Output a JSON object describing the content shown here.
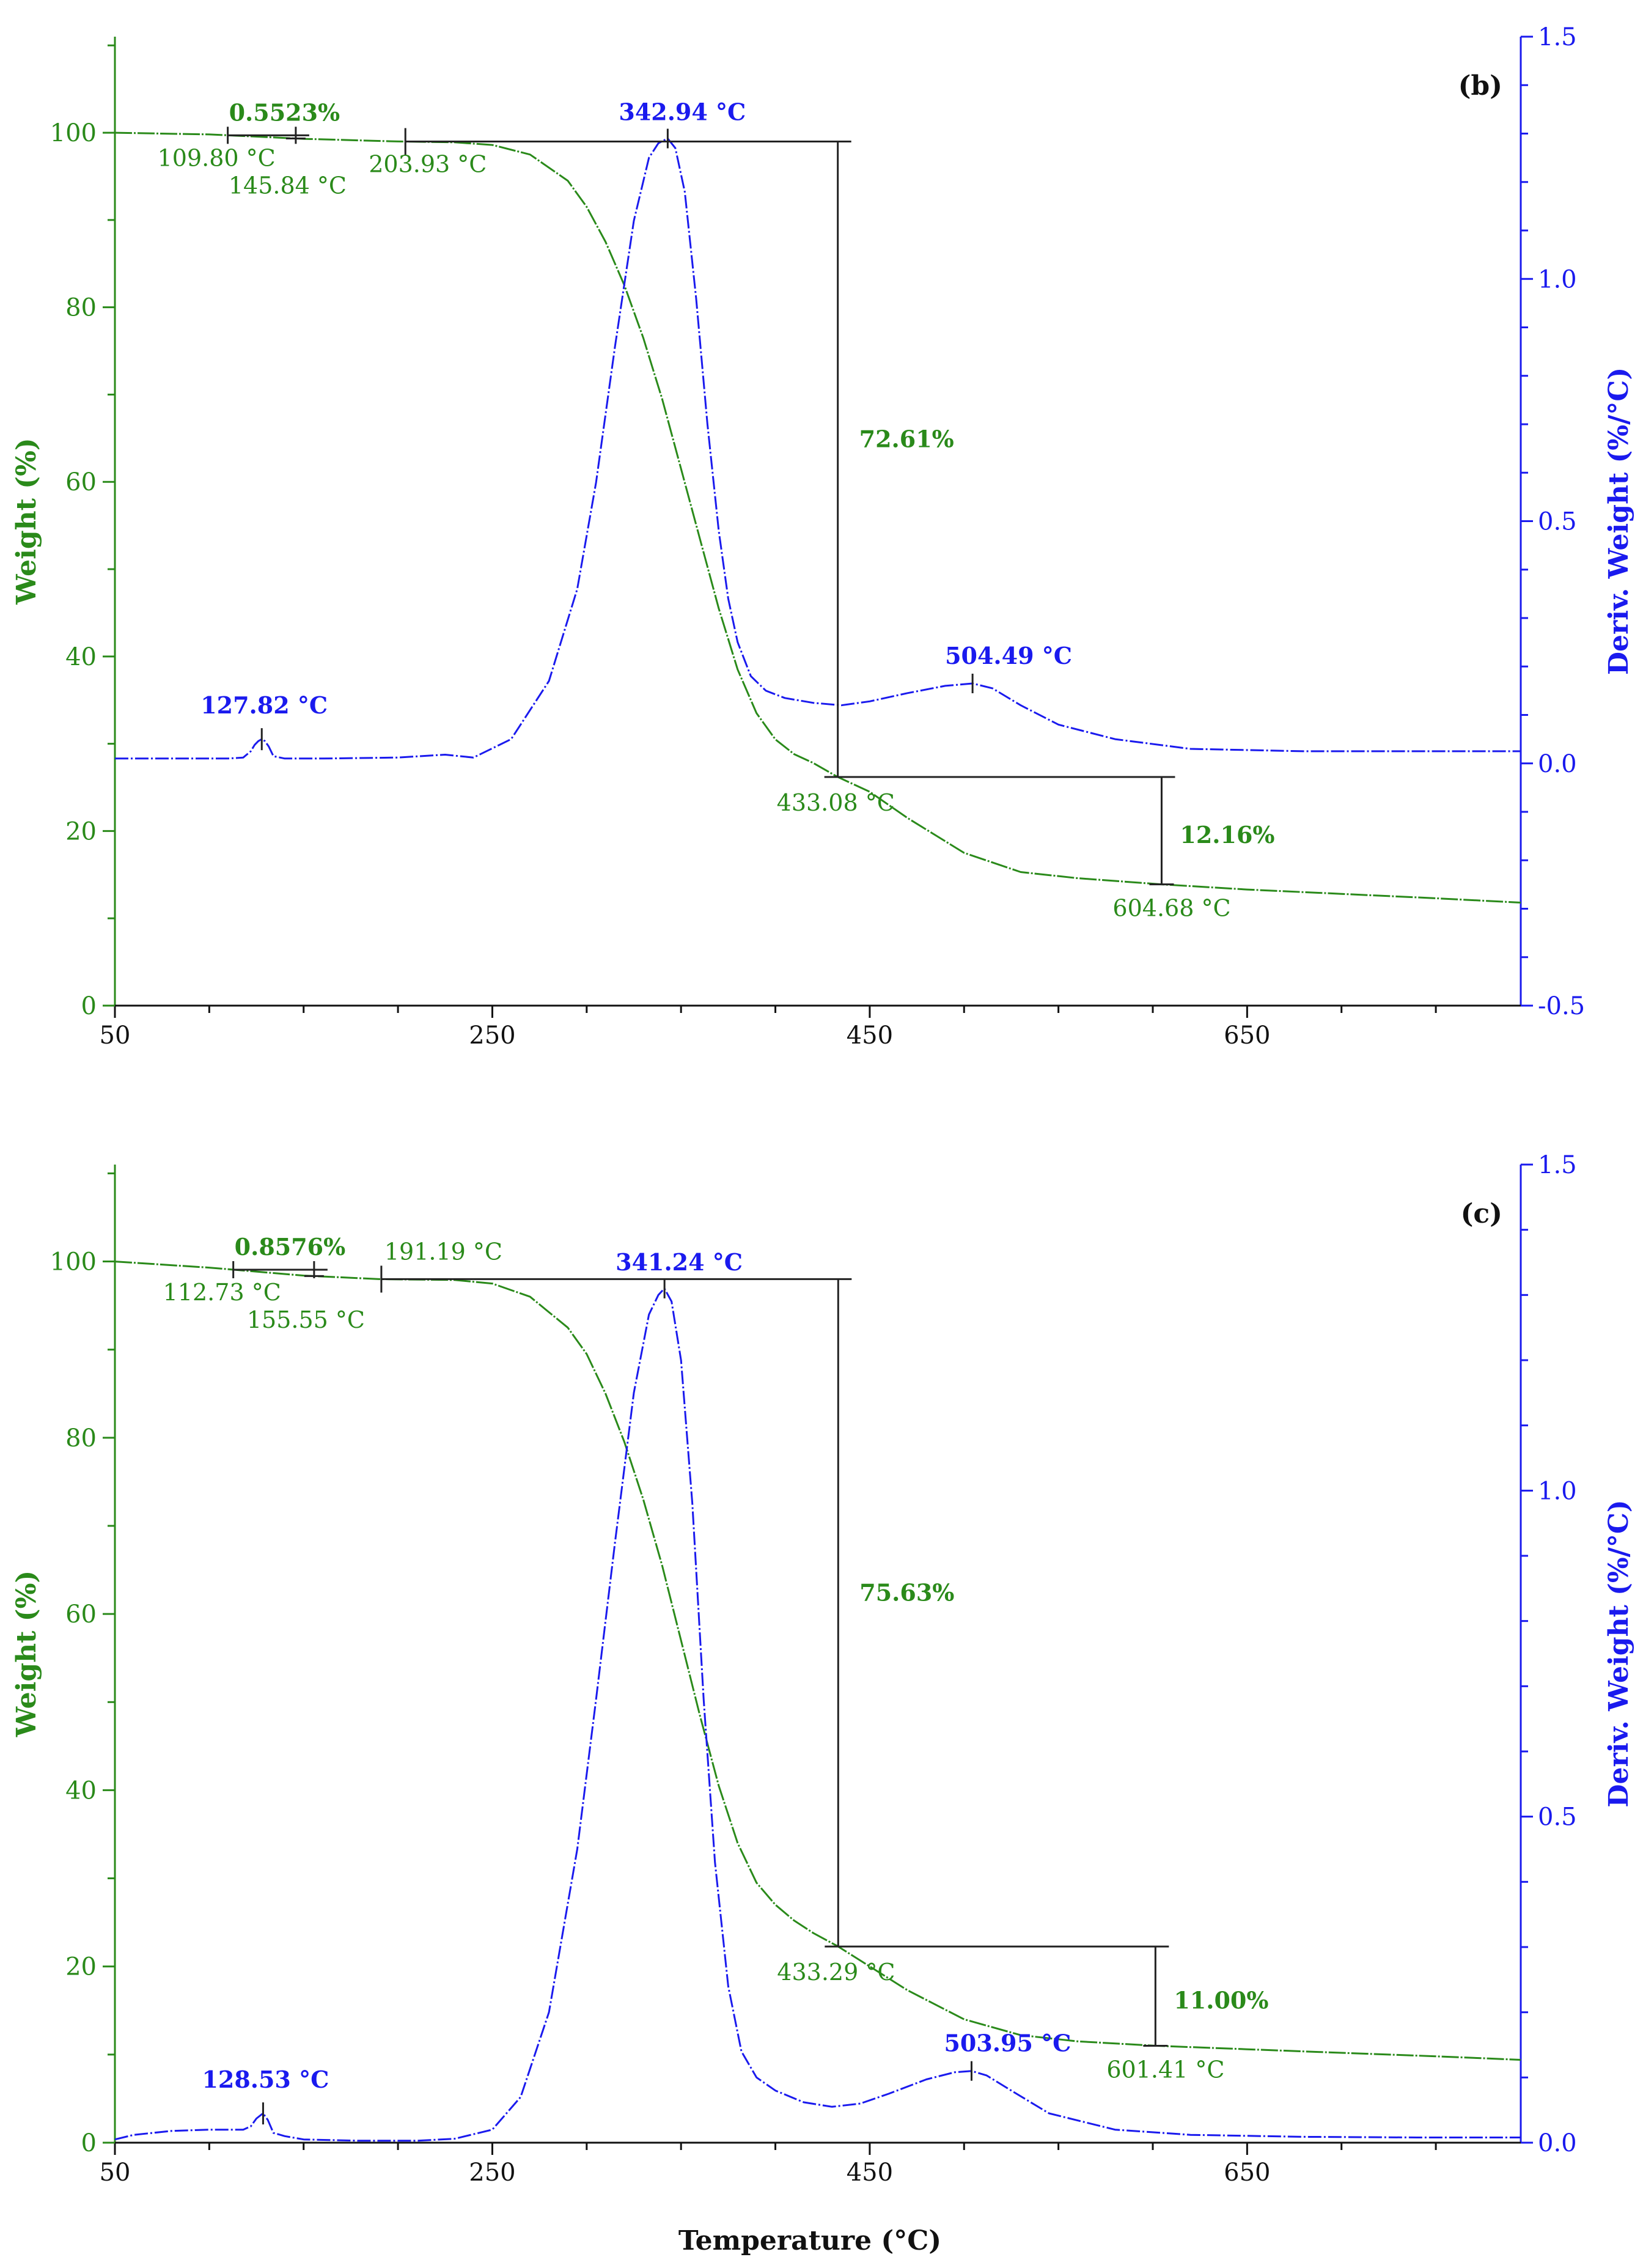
{
  "colors": {
    "weight": "#2a8a1a",
    "deriv": "#1a1aee",
    "axis_black": "#111111",
    "marker": "#222222"
  },
  "x_label": "Temperature (°C)",
  "chart_data": [
    {
      "type": "line",
      "panel_label": "(b)",
      "xlim": [
        50,
        795
      ],
      "xticks": [
        50,
        250,
        450,
        650
      ],
      "xtick_labels": [
        "50",
        "250",
        "450",
        "650"
      ],
      "ylabel": "Weight (%)",
      "ylim": [
        0,
        111
      ],
      "yticks": [
        0,
        20,
        40,
        60,
        80,
        100
      ],
      "ytick_labels": [
        "0",
        "20",
        "40",
        "60",
        "80",
        "100"
      ],
      "y2label": "Deriv. Weight (%/°C)",
      "y2lim": [
        -0.5,
        1.5
      ],
      "y2ticks": [
        -0.5,
        0.0,
        0.5,
        1.0,
        1.5
      ],
      "y2tick_labels": [
        "-0.5",
        "0.0",
        "0.5",
        "1.0",
        "1.5"
      ],
      "series": [
        {
          "name": "Weight",
          "axis": "left",
          "x": [
            50,
            100,
            150,
            200,
            230,
            250,
            270,
            290,
            300,
            310,
            320,
            330,
            340,
            350,
            360,
            370,
            380,
            390,
            400,
            410,
            420,
            433,
            450,
            470,
            500,
            530,
            560,
            604,
            650,
            700,
            750,
            795
          ],
          "y": [
            100,
            99.8,
            99.3,
            99.0,
            98.9,
            98.6,
            97.5,
            94.5,
            91.5,
            87.5,
            82.5,
            76.5,
            69.5,
            61.5,
            53.5,
            45.5,
            38.5,
            33.5,
            30.5,
            28.8,
            27.8,
            26.2,
            24.5,
            21.5,
            17.5,
            15.3,
            14.6,
            13.9,
            13.3,
            12.8,
            12.3,
            11.8
          ]
        },
        {
          "name": "Deriv. Weight",
          "axis": "right",
          "x": [
            50,
            80,
            110,
            118,
            122,
            124,
            126,
            127.8,
            129.5,
            131.5,
            134,
            140,
            160,
            200,
            225,
            230,
            240,
            260,
            280,
            295,
            305,
            315,
            325,
            333,
            338,
            342.9,
            347,
            352,
            358,
            364,
            370,
            375,
            380,
            387,
            395,
            405,
            420,
            435,
            450,
            470,
            490,
            504.5,
            515,
            530,
            550,
            580,
            620,
            680,
            740,
            795
          ],
          "y": [
            0.01,
            0.01,
            0.01,
            0.012,
            0.025,
            0.038,
            0.046,
            0.05,
            0.046,
            0.035,
            0.015,
            0.01,
            0.01,
            0.012,
            0.018,
            0.016,
            0.012,
            0.05,
            0.17,
            0.36,
            0.58,
            0.86,
            1.12,
            1.25,
            1.28,
            1.29,
            1.27,
            1.18,
            0.96,
            0.7,
            0.48,
            0.34,
            0.25,
            0.18,
            0.15,
            0.135,
            0.125,
            0.12,
            0.128,
            0.145,
            0.16,
            0.165,
            0.155,
            0.12,
            0.08,
            0.05,
            0.03,
            0.025,
            0.025,
            0.025
          ]
        }
      ],
      "annotations": {
        "small_step_percent": "0.5523%",
        "small_step_start": "109.80 °C",
        "small_step_end": "145.84 °C",
        "onset": "203.93 °C",
        "main_peak": "342.94 °C",
        "main_loss_percent": "72.61%",
        "small_peak": "127.82 °C",
        "second_peak": "504.49 °C",
        "second_step_start": "433.08 °C",
        "second_loss_percent": "12.16%",
        "second_step_end": "604.68 °C"
      }
    },
    {
      "type": "line",
      "panel_label": "(c)",
      "xlim": [
        50,
        795
      ],
      "xticks": [
        50,
        250,
        450,
        650
      ],
      "xtick_labels": [
        "50",
        "250",
        "450",
        "650"
      ],
      "ylabel": "Weight (%)",
      "ylim": [
        0,
        111
      ],
      "yticks": [
        0,
        20,
        40,
        60,
        80,
        100
      ],
      "ytick_labels": [
        "0",
        "20",
        "40",
        "60",
        "80",
        "100"
      ],
      "y2label": "Deriv. Weight (%/°C)",
      "y2lim": [
        0.0,
        1.5
      ],
      "y2ticks": [
        0.0,
        0.5,
        1.0,
        1.5
      ],
      "y2tick_labels": [
        "0.0",
        "0.5",
        "1.0",
        "1.5"
      ],
      "series": [
        {
          "name": "Weight",
          "axis": "left",
          "x": [
            50,
            100,
            150,
            190,
            230,
            250,
            270,
            290,
            300,
            310,
            320,
            330,
            340,
            350,
            360,
            370,
            380,
            390,
            400,
            410,
            420,
            433,
            450,
            470,
            500,
            530,
            560,
            601,
            650,
            700,
            750,
            795
          ],
          "y": [
            100,
            99.3,
            98.4,
            98.0,
            97.9,
            97.5,
            96.0,
            92.5,
            89.5,
            85.0,
            79.5,
            73.0,
            65.5,
            57.0,
            48.5,
            40.5,
            34.0,
            29.5,
            27.0,
            25.2,
            23.8,
            22.3,
            20.0,
            17.3,
            14.0,
            12.2,
            11.5,
            11.0,
            10.6,
            10.2,
            9.8,
            9.4
          ]
        },
        {
          "name": "Deriv. Weight",
          "axis": "right",
          "x": [
            50,
            60,
            80,
            100,
            118,
            122,
            125,
            128.5,
            131,
            134,
            140,
            150,
            180,
            210,
            230,
            250,
            265,
            280,
            295,
            305,
            315,
            325,
            333,
            338,
            341.2,
            345,
            350,
            356,
            362,
            368,
            375,
            382,
            390,
            400,
            415,
            430,
            445,
            460,
            480,
            495,
            504,
            512,
            525,
            545,
            580,
            620,
            680,
            740,
            795
          ],
          "y": [
            0.005,
            0.012,
            0.018,
            0.02,
            0.02,
            0.025,
            0.037,
            0.045,
            0.035,
            0.015,
            0.01,
            0.005,
            0.003,
            0.003,
            0.006,
            0.02,
            0.07,
            0.2,
            0.45,
            0.68,
            0.92,
            1.15,
            1.27,
            1.3,
            1.31,
            1.29,
            1.2,
            0.98,
            0.68,
            0.43,
            0.24,
            0.14,
            0.1,
            0.08,
            0.062,
            0.055,
            0.06,
            0.075,
            0.097,
            0.108,
            0.11,
            0.103,
            0.08,
            0.045,
            0.02,
            0.012,
            0.009,
            0.008,
            0.008
          ]
        }
      ],
      "annotations": {
        "small_step_percent": "0.8576%",
        "small_step_start": "112.73 °C",
        "small_step_end": "155.55 °C",
        "onset": "191.19 °C",
        "main_peak": "341.24 °C",
        "main_loss_percent": "75.63%",
        "small_peak": "128.53 °C",
        "second_peak": "503.95 °C",
        "second_step_start": "433.29 °C",
        "second_loss_percent": "11.00%",
        "second_step_end": "601.41 °C"
      }
    }
  ]
}
